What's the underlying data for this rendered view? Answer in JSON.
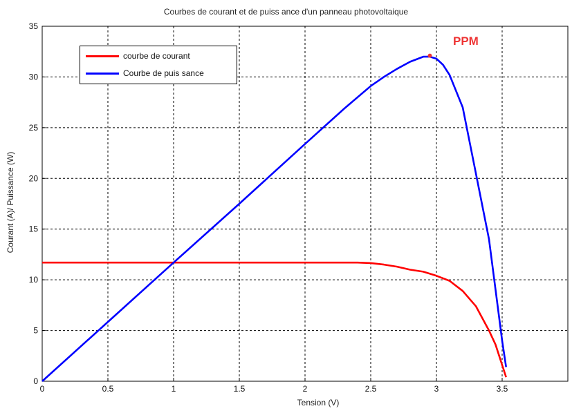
{
  "chart_data": {
    "type": "line",
    "title": "Courbes  de courant et de puiss ance d'un panneau photovoltaique",
    "xlabel": "Tension (V)",
    "ylabel": "Courant (A)/ Puissance (W)",
    "xlim": [
      0,
      4
    ],
    "ylim": [
      0,
      35
    ],
    "xticks": [
      0,
      0.5,
      1,
      1.5,
      2,
      2.5,
      3,
      3.5
    ],
    "xtick_labels": [
      "0",
      "0.5",
      "1",
      "1.5",
      "2",
      "2.5",
      "3",
      "3.5"
    ],
    "yticks": [
      0,
      5,
      10,
      15,
      20,
      25,
      30,
      35
    ],
    "ytick_labels": [
      "0",
      "5",
      "10",
      "15",
      "20",
      "25",
      "30",
      "35"
    ],
    "grid": true,
    "legend_position": "top-left",
    "series": [
      {
        "name": "courbe de courant",
        "color": "#ff0000",
        "x": [
          0,
          0.5,
          1.0,
          1.5,
          2.0,
          2.3,
          2.4,
          2.5,
          2.6,
          2.7,
          2.8,
          2.9,
          3.0,
          3.1,
          3.2,
          3.3,
          3.4,
          3.45,
          3.5,
          3.53
        ],
        "y": [
          11.7,
          11.7,
          11.7,
          11.7,
          11.7,
          11.7,
          11.7,
          11.65,
          11.5,
          11.3,
          11.0,
          10.8,
          10.4,
          9.9,
          8.9,
          7.4,
          5.0,
          3.6,
          1.6,
          0.4
        ]
      },
      {
        "name": "Courbe de puis sance",
        "color": "#0000ff",
        "x": [
          0,
          0.5,
          1.0,
          1.5,
          2.0,
          2.3,
          2.5,
          2.6,
          2.7,
          2.8,
          2.9,
          2.95,
          3.0,
          3.05,
          3.1,
          3.2,
          3.3,
          3.4,
          3.45,
          3.5,
          3.53
        ],
        "y": [
          0,
          5.85,
          11.7,
          17.5,
          23.4,
          26.9,
          29.1,
          30.0,
          30.8,
          31.5,
          32.0,
          32.0,
          31.8,
          31.2,
          30.2,
          27.0,
          20.5,
          14.0,
          9.0,
          4.0,
          1.4
        ]
      }
    ],
    "annotations": [
      {
        "text": "PPM",
        "color": "#ee3333",
        "marker_x": 2.95,
        "marker_y": 32.1
      }
    ]
  }
}
